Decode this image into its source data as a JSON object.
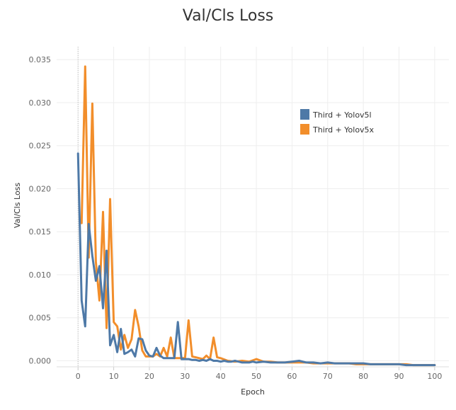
{
  "chart_data": {
    "type": "line",
    "title": "Val/Cls Loss",
    "xlabel": "Epoch",
    "ylabel": "Val/Cls Loss",
    "xlim": [
      -6,
      104
    ],
    "ylim": [
      -0.0007,
      0.0365
    ],
    "x_ticks": [
      0,
      10,
      20,
      30,
      40,
      50,
      60,
      70,
      80,
      90,
      100
    ],
    "y_ticks": [
      0.0,
      0.005,
      0.01,
      0.015,
      0.02,
      0.025,
      0.03,
      0.035
    ],
    "y_tick_labels": [
      "0.000",
      "0.005",
      "0.010",
      "0.015",
      "0.020",
      "0.025",
      "0.030",
      "0.035"
    ],
    "grid": true,
    "legend_position": "top-right",
    "series": [
      {
        "name": "Third + Yolov5l",
        "color": "#4e79a7",
        "points": [
          [
            0,
            0.0241
          ],
          [
            1,
            0.007
          ],
          [
            2,
            0.004
          ],
          [
            3,
            0.0159
          ],
          [
            4,
            0.0122
          ],
          [
            5,
            0.0093
          ],
          [
            6,
            0.011
          ],
          [
            7,
            0.0061
          ],
          [
            8,
            0.0128
          ],
          [
            9,
            0.0018
          ],
          [
            10,
            0.003
          ],
          [
            11,
            0.001
          ],
          [
            12,
            0.0037
          ],
          [
            13,
            0.0008
          ],
          [
            14,
            0.001
          ],
          [
            15,
            0.0013
          ],
          [
            16,
            0.0005
          ],
          [
            17,
            0.0026
          ],
          [
            18,
            0.0025
          ],
          [
            19,
            0.0012
          ],
          [
            20,
            0.0006
          ],
          [
            21,
            0.0005
          ],
          [
            22,
            0.0015
          ],
          [
            23,
            0.0006
          ],
          [
            24,
            0.0003
          ],
          [
            25,
            0.0003
          ],
          [
            26,
            0.0003
          ],
          [
            27,
            0.0003
          ],
          [
            28,
            0.0045
          ],
          [
            29,
            0.0002
          ],
          [
            30,
            0.0002
          ],
          [
            31,
            0.0002
          ],
          [
            32,
            0.0001
          ],
          [
            33,
            0.0001
          ],
          [
            34,
            0.0
          ],
          [
            35,
            0.0001
          ],
          [
            36,
            0.0
          ],
          [
            37,
            0.0002
          ],
          [
            38,
            0.0
          ],
          [
            39,
            0.0
          ],
          [
            40,
            -0.0001
          ],
          [
            41,
            0.0
          ],
          [
            42,
            -0.0001
          ],
          [
            43,
            -0.0001
          ],
          [
            44,
            0.0
          ],
          [
            45,
            -0.0001
          ],
          [
            46,
            -0.0002
          ],
          [
            47,
            -0.0002
          ],
          [
            48,
            -0.0002
          ],
          [
            49,
            -0.0001
          ],
          [
            50,
            -0.0002
          ],
          [
            52,
            -0.0001
          ],
          [
            54,
            -0.0002
          ],
          [
            56,
            -0.0002
          ],
          [
            58,
            -0.0002
          ],
          [
            60,
            -0.0001
          ],
          [
            62,
            0.0
          ],
          [
            64,
            -0.0002
          ],
          [
            66,
            -0.0002
          ],
          [
            68,
            -0.0003
          ],
          [
            70,
            -0.0002
          ],
          [
            72,
            -0.0003
          ],
          [
            74,
            -0.0003
          ],
          [
            76,
            -0.0003
          ],
          [
            78,
            -0.0003
          ],
          [
            80,
            -0.0003
          ],
          [
            82,
            -0.0004
          ],
          [
            84,
            -0.0004
          ],
          [
            86,
            -0.0004
          ],
          [
            88,
            -0.0004
          ],
          [
            90,
            -0.0004
          ],
          [
            92,
            -0.0005
          ],
          [
            94,
            -0.0005
          ],
          [
            96,
            -0.0005
          ],
          [
            98,
            -0.0005
          ],
          [
            100,
            -0.0005
          ]
        ]
      },
      {
        "name": "Third + Yolov5x",
        "color": "#f28e2b",
        "points": [
          [
            1,
            0.016
          ],
          [
            2,
            0.0342
          ],
          [
            3,
            0.012
          ],
          [
            4,
            0.0299
          ],
          [
            5,
            0.0115
          ],
          [
            6,
            0.007
          ],
          [
            7,
            0.0173
          ],
          [
            8,
            0.0038
          ],
          [
            9,
            0.0188
          ],
          [
            10,
            0.0045
          ],
          [
            11,
            0.004
          ],
          [
            12,
            0.0013
          ],
          [
            13,
            0.003
          ],
          [
            14,
            0.0015
          ],
          [
            15,
            0.0025
          ],
          [
            16,
            0.0059
          ],
          [
            17,
            0.004
          ],
          [
            18,
            0.0012
          ],
          [
            19,
            0.0005
          ],
          [
            20,
            0.0005
          ],
          [
            21,
            0.0005
          ],
          [
            22,
            0.0008
          ],
          [
            23,
            0.0005
          ],
          [
            24,
            0.0015
          ],
          [
            25,
            0.0005
          ],
          [
            26,
            0.0027
          ],
          [
            27,
            0.0003
          ],
          [
            28,
            0.0003
          ],
          [
            29,
            0.0003
          ],
          [
            30,
            0.0003
          ],
          [
            31,
            0.0047
          ],
          [
            32,
            0.0005
          ],
          [
            33,
            0.0004
          ],
          [
            34,
            0.0003
          ],
          [
            35,
            0.0002
          ],
          [
            36,
            0.0006
          ],
          [
            37,
            0.0002
          ],
          [
            38,
            0.0027
          ],
          [
            39,
            0.0004
          ],
          [
            40,
            0.0003
          ],
          [
            42,
            0.0
          ],
          [
            44,
            -0.0001
          ],
          [
            46,
            0.0
          ],
          [
            48,
            -0.0001
          ],
          [
            50,
            0.0002
          ],
          [
            52,
            -0.0001
          ],
          [
            54,
            -0.0001
          ],
          [
            56,
            -0.0002
          ],
          [
            58,
            -0.0002
          ],
          [
            60,
            -0.0002
          ],
          [
            62,
            -0.0002
          ],
          [
            64,
            -0.0002
          ],
          [
            66,
            -0.0003
          ],
          [
            68,
            -0.0003
          ],
          [
            70,
            -0.0003
          ],
          [
            72,
            -0.0003
          ],
          [
            74,
            -0.0003
          ],
          [
            76,
            -0.0003
          ],
          [
            78,
            -0.0004
          ],
          [
            80,
            -0.0004
          ],
          [
            82,
            -0.0004
          ],
          [
            84,
            -0.0004
          ],
          [
            86,
            -0.0004
          ],
          [
            88,
            -0.0004
          ],
          [
            90,
            -0.0004
          ],
          [
            92,
            -0.0004
          ],
          [
            94,
            -0.0005
          ],
          [
            96,
            -0.0005
          ],
          [
            98,
            -0.0005
          ],
          [
            100,
            -0.0005
          ]
        ]
      }
    ]
  }
}
